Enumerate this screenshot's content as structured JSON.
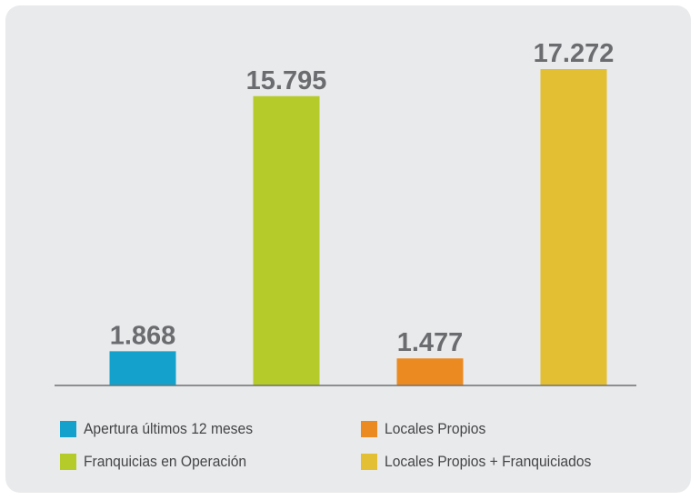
{
  "chart_data": {
    "type": "bar",
    "categories": [
      "Apertura últimos 12 meses",
      "Franquicias en Operación",
      "Locales Propios",
      "Locales Propios + Franquiciados"
    ],
    "values": [
      1868,
      15795,
      1477,
      17272
    ],
    "data_labels": [
      "1.868",
      "15.795",
      "1.477",
      "17.272"
    ],
    "colors": [
      "#14a2cc",
      "#b5cb2a",
      "#ec8a22",
      "#e3bf33"
    ],
    "ylim": [
      0,
      17272
    ],
    "title": "",
    "xlabel": "",
    "ylabel": "",
    "grid": false,
    "legend_position": "bottom"
  },
  "legend": {
    "items": [
      {
        "label": "Apertura últimos 12 meses",
        "color": "#14a2cc"
      },
      {
        "label": "Locales Propios",
        "color": "#ec8a22"
      },
      {
        "label": "Franquicias en Operación",
        "color": "#b5cb2a"
      },
      {
        "label": "Locales Propios + Franquiciados",
        "color": "#e3bf33"
      }
    ]
  },
  "theme": {
    "background": "#e9eaeb",
    "axis_color": "#6f7073",
    "label_color": "#6b6c6f"
  }
}
